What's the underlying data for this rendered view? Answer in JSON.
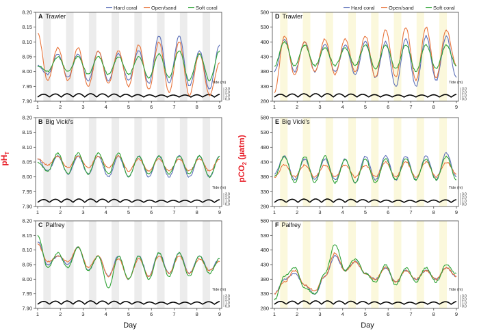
{
  "figure": {
    "y_label_left": "pH",
    "y_label_left_sub": "T",
    "y_label_right_pre": "pCO",
    "y_label_right_sub": "2",
    "y_label_right_post": " (µatm)",
    "x_label_left": "Day",
    "x_label_right": "Day",
    "legend": [
      "Hard coral",
      "Open/sand",
      "Soft coral"
    ],
    "tide_title": "Tide (m)",
    "tide_ticks": [
      "3.0",
      "2.0",
      "1.0",
      "0.0"
    ],
    "colors": {
      "hard_coral": "#5b6fb8",
      "open_sand": "#e8743b",
      "soft_coral": "#2fa336",
      "night_ph": "#ececec",
      "night_pco2": "#fbf8dc",
      "tide": "#000000"
    }
  },
  "chart_data": [
    {
      "letter": "A",
      "site": "Trawler",
      "type": "line",
      "variable": "pHT",
      "x_ticks": [
        1,
        2,
        3,
        4,
        5,
        6,
        7,
        8,
        9
      ],
      "ylim": [
        7.9,
        8.2
      ],
      "y_ticks": [
        "7.90",
        "7.95",
        "8.00",
        "8.05",
        "8.10",
        "8.15",
        "8.20"
      ],
      "series": [
        {
          "name": "Hard coral",
          "values": [
            8.02,
            7.99,
            8.06,
            7.98,
            8.06,
            7.97,
            8.07,
            7.97,
            8.06,
            7.97,
            8.07,
            7.96,
            8.12,
            7.96,
            8.12,
            7.95,
            8.07,
            7.94,
            8.09
          ]
        },
        {
          "name": "Open/sand",
          "values": [
            8.13,
            7.97,
            8.08,
            7.97,
            8.08,
            7.95,
            8.07,
            7.96,
            8.07,
            7.95,
            8.09,
            7.94,
            8.1,
            7.93,
            8.1,
            7.92,
            8.06,
            7.92,
            8.03
          ]
        },
        {
          "name": "Soft coral",
          "values": [
            8.02,
            8.0,
            8.05,
            8.0,
            8.05,
            7.99,
            8.05,
            7.99,
            8.05,
            7.99,
            8.05,
            7.98,
            8.06,
            7.98,
            8.07,
            7.97,
            8.06,
            7.97,
            8.07
          ]
        }
      ]
    },
    {
      "letter": "B",
      "site": "Big Vicki's",
      "type": "line",
      "variable": "pHT",
      "x_ticks": [
        1,
        2,
        3,
        4,
        5,
        6,
        7,
        8,
        9
      ],
      "ylim": [
        7.9,
        8.2
      ],
      "y_ticks": [
        "7.90",
        "7.95",
        "8.00",
        "8.05",
        "8.10",
        "8.15",
        "8.20"
      ],
      "series": [
        {
          "name": "Hard coral",
          "values": [
            8.06,
            8.02,
            8.07,
            8.01,
            8.07,
            8.01,
            8.07,
            8.0,
            8.07,
            8.0,
            8.07,
            8.0,
            8.07,
            8.0,
            8.07,
            8.0,
            8.07,
            8.0,
            8.07
          ]
        },
        {
          "name": "Open/sand",
          "values": [
            8.06,
            8.04,
            8.07,
            8.03,
            8.07,
            8.03,
            8.07,
            8.03,
            8.07,
            8.02,
            8.06,
            8.02,
            8.06,
            8.02,
            8.06,
            8.02,
            8.06,
            8.02,
            8.06
          ]
        },
        {
          "name": "Soft coral",
          "values": [
            8.05,
            8.02,
            8.08,
            8.01,
            8.08,
            8.01,
            8.08,
            8.01,
            8.08,
            8.0,
            8.07,
            8.01,
            8.07,
            8.01,
            8.07,
            8.01,
            8.07,
            8.0,
            8.07
          ]
        }
      ]
    },
    {
      "letter": "C",
      "site": "Palfrey",
      "type": "line",
      "variable": "pHT",
      "x_ticks": [
        1,
        2,
        3,
        4,
        5,
        6,
        7,
        8,
        9
      ],
      "ylim": [
        7.9,
        8.2
      ],
      "y_ticks": [
        "7.90",
        "7.95",
        "8.00",
        "8.05",
        "8.10",
        "8.15",
        "8.20"
      ],
      "series": [
        {
          "name": "Hard coral",
          "values": [
            8.13,
            8.05,
            8.08,
            8.05,
            8.11,
            8.03,
            8.08,
            8.01,
            8.08,
            8.0,
            8.08,
            8.01,
            8.09,
            8.02,
            8.09,
            8.02,
            8.08,
            8.03,
            8.07
          ]
        },
        {
          "name": "Open/sand",
          "values": [
            8.12,
            8.06,
            8.08,
            8.06,
            8.11,
            8.04,
            8.08,
            8.01,
            8.07,
            8.0,
            8.07,
            8.01,
            8.08,
            8.02,
            8.08,
            8.02,
            8.07,
            8.03,
            8.06
          ]
        },
        {
          "name": "Soft coral",
          "values": [
            8.15,
            8.04,
            8.09,
            8.04,
            8.11,
            8.03,
            8.08,
            7.97,
            8.08,
            8.0,
            8.08,
            8.0,
            8.09,
            8.01,
            8.09,
            8.01,
            8.08,
            8.02,
            8.07
          ]
        }
      ]
    },
    {
      "letter": "D",
      "site": "Trawler",
      "type": "line",
      "variable": "pCO2",
      "x_ticks": [
        1,
        2,
        3,
        4,
        5,
        6,
        7,
        8,
        9
      ],
      "ylim": [
        280,
        580
      ],
      "y_ticks": [
        "280",
        "330",
        "380",
        "430",
        "480",
        "530",
        "580"
      ],
      "series": [
        {
          "name": "Hard coral",
          "values": [
            380,
            490,
            380,
            480,
            380,
            470,
            380,
            470,
            370,
            480,
            360,
            480,
            330,
            490,
            330,
            500,
            350,
            500,
            360
          ]
        },
        {
          "name": "Open/sand",
          "values": [
            310,
            500,
            370,
            480,
            380,
            490,
            370,
            490,
            380,
            500,
            360,
            520,
            360,
            530,
            350,
            530,
            360,
            520,
            400
          ]
        },
        {
          "name": "Soft coral",
          "values": [
            400,
            480,
            400,
            470,
            400,
            460,
            400,
            460,
            400,
            470,
            390,
            470,
            390,
            470,
            380,
            470,
            390,
            470,
            400
          ]
        }
      ]
    },
    {
      "letter": "E",
      "site": "Big Vicki's",
      "type": "line",
      "variable": "pCO2",
      "x_ticks": [
        1,
        2,
        3,
        4,
        5,
        6,
        7,
        8,
        9
      ],
      "ylim": [
        280,
        580
      ],
      "y_ticks": [
        "280",
        "330",
        "380",
        "430",
        "480",
        "530",
        "580"
      ],
      "series": [
        {
          "name": "Hard coral",
          "values": [
            390,
            450,
            370,
            440,
            370,
            440,
            370,
            440,
            360,
            450,
            370,
            450,
            370,
            450,
            370,
            450,
            370,
            460,
            380
          ]
        },
        {
          "name": "Open/sand",
          "values": [
            380,
            420,
            380,
            420,
            380,
            420,
            380,
            420,
            380,
            420,
            380,
            430,
            380,
            430,
            380,
            430,
            380,
            430,
            390
          ]
        },
        {
          "name": "Soft coral",
          "values": [
            380,
            450,
            360,
            450,
            360,
            450,
            360,
            440,
            360,
            440,
            360,
            440,
            370,
            440,
            370,
            440,
            370,
            450,
            370
          ]
        }
      ]
    },
    {
      "letter": "F",
      "site": "Palfrey",
      "type": "line",
      "variable": "pCO2",
      "x_ticks": [
        1,
        2,
        3,
        4,
        5,
        6,
        7,
        8,
        9
      ],
      "ylim": [
        280,
        580
      ],
      "y_ticks": [
        "280",
        "330",
        "380",
        "430",
        "480",
        "530",
        "580"
      ],
      "series": [
        {
          "name": "Hard coral",
          "values": [
            330,
            380,
            400,
            360,
            330,
            390,
            460,
            410,
            440,
            400,
            380,
            420,
            370,
            410,
            380,
            410,
            380,
            420,
            390
          ]
        },
        {
          "name": "Open/sand",
          "values": [
            330,
            370,
            410,
            360,
            340,
            390,
            470,
            410,
            440,
            400,
            380,
            420,
            370,
            410,
            380,
            410,
            380,
            420,
            390
          ]
        },
        {
          "name": "Soft coral",
          "values": [
            310,
            390,
            420,
            350,
            330,
            400,
            500,
            410,
            450,
            400,
            370,
            430,
            360,
            420,
            370,
            420,
            370,
            430,
            400
          ]
        }
      ]
    }
  ]
}
